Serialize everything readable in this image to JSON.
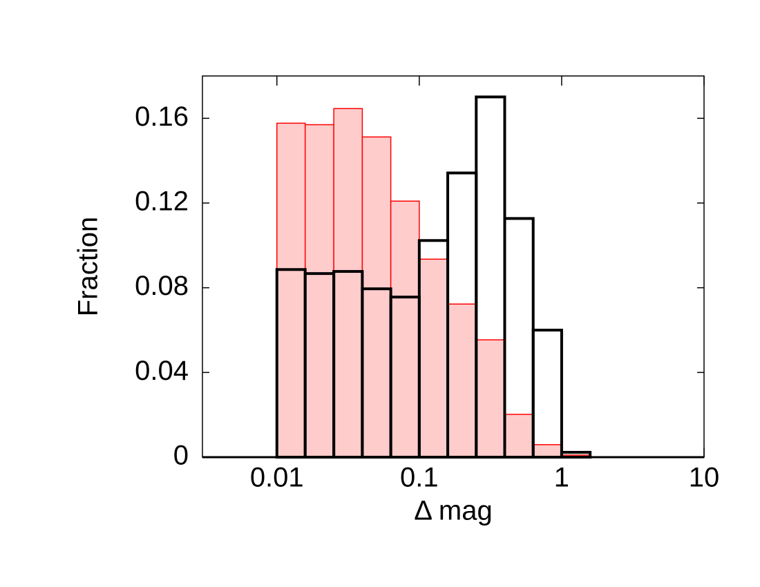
{
  "chart_data": {
    "type": "histogram",
    "xlabel": "Δ mag",
    "ylabel": "Fraction",
    "xscale": "log",
    "xlim": [
      0.003,
      10
    ],
    "xticks": [
      0.01,
      0.1,
      1,
      10
    ],
    "ylim": [
      0,
      0.18
    ],
    "yticks": [
      0,
      0.04,
      0.08,
      0.12,
      0.16
    ],
    "bins": [
      0.01,
      0.0158,
      0.0251,
      0.0398,
      0.0631,
      0.1,
      0.1585,
      0.2512,
      0.3981,
      0.631,
      1,
      1.585
    ],
    "series": [
      {
        "color": "#ff0000",
        "fill": "#ffcccc",
        "values": [
          0.1577,
          0.157,
          0.1646,
          0.1512,
          0.1209,
          0.0935,
          0.0723,
          0.0554,
          0.0202,
          0.0059,
          0.001
        ]
      },
      {
        "color": "#000000",
        "fill": "none",
        "values": [
          0.0886,
          0.0867,
          0.0877,
          0.0795,
          0.0756,
          0.1023,
          0.1342,
          0.1701,
          0.1127,
          0.06,
          0.0023
        ]
      }
    ]
  }
}
